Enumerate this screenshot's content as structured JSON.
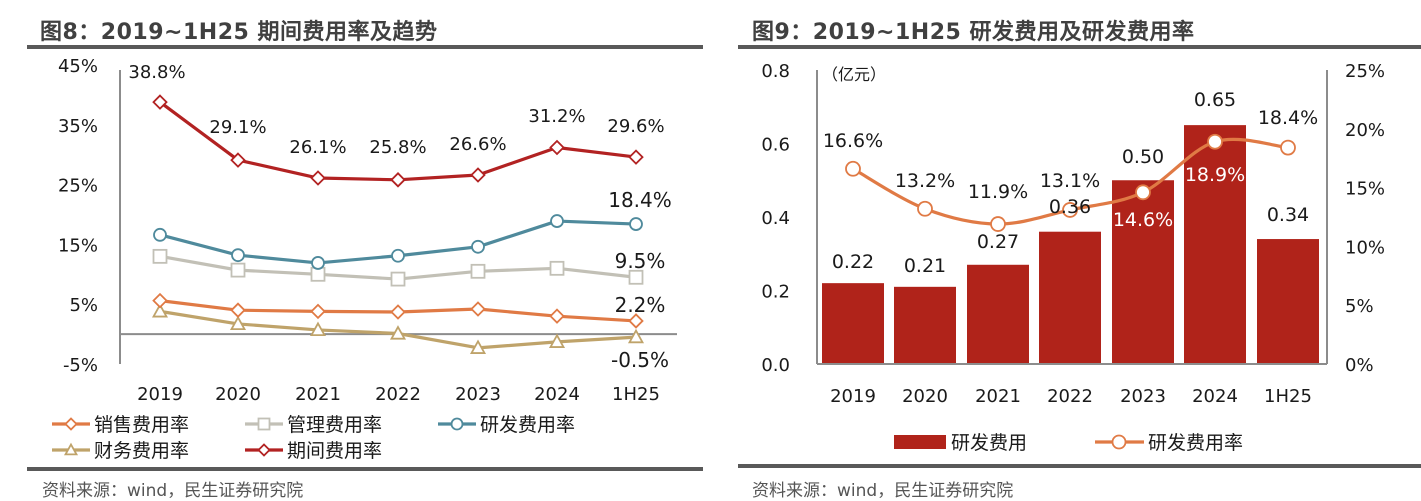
{
  "figures": [
    {
      "title": "图8：2019~1H25 期间费用率及趋势",
      "source": "资料来源：wind，民生证券研究院"
    },
    {
      "title": "图9：2019~1H25 研发费用及研发费用率",
      "source": "资料来源：wind，民生证券研究院"
    }
  ],
  "colors": {
    "sales": "#E07A45",
    "admin": "#C2C0B6",
    "rd_rate": "#4F8A9C",
    "finance": "#BFA36A",
    "period": "#B22222",
    "rd_bar": "#B0231A",
    "rd_line": "#E07A45",
    "axis": "#8C8C8C",
    "text": "#1a1a1a"
  },
  "chart_data": [
    {
      "type": "line",
      "title": "图8：2019~1H25 期间费用率及趋势",
      "xlabel": "",
      "ylabel": "",
      "categories": [
        "2019",
        "2020",
        "2021",
        "2022",
        "2023",
        "2024",
        "1H25"
      ],
      "ylim": [
        -5,
        45
      ],
      "yticks": [
        "45%",
        "35%",
        "25%",
        "15%",
        "5%",
        "-5%"
      ],
      "ytick_values": [
        45,
        35,
        25,
        15,
        5,
        -5
      ],
      "grid": false,
      "legend_position": "bottom",
      "series": [
        {
          "key": "sales",
          "name": "销售费用率",
          "marker": "diamond",
          "values": [
            5.6,
            4.0,
            3.8,
            3.7,
            4.2,
            3.0,
            2.2
          ],
          "labels": [
            null,
            null,
            null,
            null,
            null,
            null,
            "2.2%"
          ]
        },
        {
          "key": "admin",
          "name": "管理费用率",
          "marker": "square",
          "values": [
            13.0,
            10.7,
            10.0,
            9.2,
            10.5,
            11.0,
            9.5
          ],
          "labels": [
            null,
            null,
            null,
            null,
            null,
            null,
            "9.5%"
          ]
        },
        {
          "key": "rd_rate",
          "name": "研发费用率",
          "marker": "circle",
          "values": [
            16.6,
            13.2,
            11.9,
            13.1,
            14.6,
            18.9,
            18.4
          ],
          "labels": [
            null,
            null,
            null,
            null,
            null,
            null,
            "18.4%"
          ]
        },
        {
          "key": "finance",
          "name": "财务费用率",
          "marker": "triangle",
          "values": [
            3.8,
            1.7,
            0.7,
            0.1,
            -2.3,
            -1.3,
            -0.5
          ],
          "labels": [
            null,
            null,
            null,
            null,
            null,
            null,
            "-0.5%"
          ]
        },
        {
          "key": "period",
          "name": "期间费用率",
          "marker": "diamond",
          "values": [
            38.8,
            29.1,
            26.1,
            25.8,
            26.6,
            31.2,
            29.6
          ],
          "labels": [
            "38.8%",
            "29.1%",
            "26.1%",
            "25.8%",
            "26.6%",
            "31.2%",
            "29.6%"
          ]
        }
      ]
    },
    {
      "type": "bar",
      "title": "图9：2019~1H25 研发费用及研发费用率",
      "unit_label": "（亿元）",
      "xlabel": "",
      "ylabel": "亿元",
      "categories": [
        "2019",
        "2020",
        "2021",
        "2022",
        "2023",
        "2024",
        "1H25"
      ],
      "ylim": [
        0,
        0.8
      ],
      "yticks": [
        "0.8",
        "0.6",
        "0.4",
        "0.2",
        "0.0"
      ],
      "ytick_values": [
        0.8,
        0.6,
        0.4,
        0.2,
        0.0
      ],
      "y2lim": [
        0,
        25
      ],
      "y2ticks": [
        "25%",
        "20%",
        "15%",
        "10%",
        "5%",
        "0%"
      ],
      "y2tick_values": [
        25,
        20,
        15,
        10,
        5,
        0
      ],
      "grid": false,
      "legend_position": "bottom",
      "series": [
        {
          "key": "rd_bar",
          "name": "研发费用",
          "type": "bar",
          "axis": "left",
          "values": [
            0.22,
            0.21,
            0.27,
            0.36,
            0.5,
            0.65,
            0.34
          ],
          "labels": [
            "0.22",
            "0.21",
            "0.27",
            "0.36",
            "0.50",
            "0.65",
            "0.34"
          ]
        },
        {
          "key": "rd_line",
          "name": "研发费用率",
          "type": "line",
          "axis": "right",
          "marker": "circle",
          "smooth": true,
          "values": [
            16.6,
            13.2,
            11.9,
            13.1,
            14.6,
            18.9,
            18.4
          ],
          "labels": [
            "16.6%",
            "13.2%",
            "11.9%",
            "13.1%",
            "14.6%",
            "18.9%",
            "18.4%"
          ]
        }
      ]
    }
  ]
}
